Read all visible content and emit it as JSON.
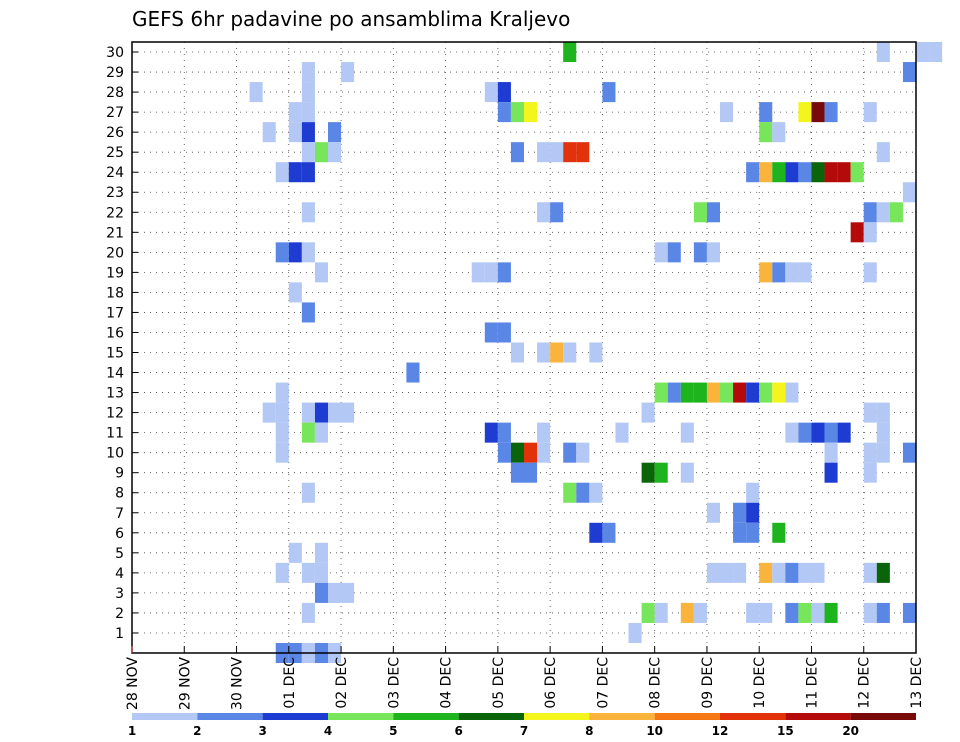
{
  "chart_data": {
    "type": "heatmap",
    "title": "GEFS 6hr padavine po ansamblima Kraljevo",
    "xlabel": "",
    "ylabel": "",
    "x_ticks": [
      "28 NOV",
      "29 NOV",
      "30 NOV",
      "01 DEC",
      "02 DEC",
      "03 DEC",
      "04 DEC",
      "05 DEC",
      "06 DEC",
      "07 DEC",
      "08 DEC",
      "09 DEC",
      "10 DEC",
      "11 DEC",
      "12 DEC",
      "13 DEC"
    ],
    "y_ticks": [
      "1",
      "2",
      "3",
      "4",
      "5",
      "6",
      "7",
      "8",
      "9",
      "10",
      "11",
      "12",
      "13",
      "14",
      "15",
      "16",
      "17",
      "18",
      "19",
      "20",
      "21",
      "22",
      "23",
      "24",
      "25",
      "26",
      "27",
      "28",
      "29",
      "30"
    ],
    "time_step_days": 0.25,
    "grid": true,
    "colorbar": {
      "labels": [
        "1",
        "2",
        "3",
        "4",
        "5",
        "6",
        "7",
        "8",
        "10",
        "12",
        "15",
        "20"
      ],
      "colors": [
        "#b4c8f5",
        "#5a87e6",
        "#1e3cd2",
        "#78e65a",
        "#1eb41e",
        "#0a640a",
        "#f5f51e",
        "#fab43c",
        "#f57814",
        "#e1320a",
        "#b40a0a",
        "#780a0a"
      ]
    },
    "cells": [
      [
        30,
        8.25,
        4
      ],
      [
        30,
        14.25,
        0
      ],
      [
        30,
        15.0,
        0
      ],
      [
        30,
        15.25,
        0
      ],
      [
        29,
        3.25,
        0
      ],
      [
        29,
        4.0,
        0
      ],
      [
        29,
        14.75,
        1
      ],
      [
        28,
        2.25,
        0
      ],
      [
        28,
        3.25,
        0
      ],
      [
        28,
        6.75,
        0
      ],
      [
        28,
        7.0,
        2
      ],
      [
        28,
        9.0,
        1
      ],
      [
        27,
        3.0,
        0
      ],
      [
        27,
        3.25,
        0
      ],
      [
        27,
        7.0,
        1
      ],
      [
        27,
        7.25,
        3
      ],
      [
        27,
        7.5,
        6
      ],
      [
        27,
        11.25,
        0
      ],
      [
        27,
        12.0,
        1
      ],
      [
        27,
        12.75,
        6
      ],
      [
        27,
        13.0,
        11
      ],
      [
        27,
        13.25,
        1
      ],
      [
        27,
        14.0,
        0
      ],
      [
        26,
        2.5,
        0
      ],
      [
        26,
        3.0,
        0
      ],
      [
        26,
        3.25,
        2
      ],
      [
        26,
        3.75,
        1
      ],
      [
        26,
        12.0,
        3
      ],
      [
        26,
        12.25,
        0
      ],
      [
        25,
        3.25,
        0
      ],
      [
        25,
        3.5,
        3
      ],
      [
        25,
        3.75,
        0
      ],
      [
        25,
        7.25,
        1
      ],
      [
        25,
        7.75,
        0
      ],
      [
        25,
        8.0,
        0
      ],
      [
        25,
        8.25,
        9
      ],
      [
        25,
        8.5,
        9
      ],
      [
        25,
        14.25,
        0
      ],
      [
        24,
        2.75,
        0
      ],
      [
        24,
        3.0,
        2
      ],
      [
        24,
        3.25,
        2
      ],
      [
        24,
        11.75,
        1
      ],
      [
        24,
        12.0,
        7
      ],
      [
        24,
        12.25,
        4
      ],
      [
        24,
        12.5,
        2
      ],
      [
        24,
        12.75,
        1
      ],
      [
        24,
        13.0,
        5
      ],
      [
        24,
        13.25,
        10
      ],
      [
        24,
        13.5,
        10
      ],
      [
        24,
        13.75,
        3
      ],
      [
        23,
        14.75,
        0
      ],
      [
        22,
        3.25,
        0
      ],
      [
        22,
        7.75,
        0
      ],
      [
        22,
        8.0,
        1
      ],
      [
        22,
        10.75,
        3
      ],
      [
        22,
        11.0,
        1
      ],
      [
        22,
        14.0,
        1
      ],
      [
        22,
        14.25,
        0
      ],
      [
        22,
        14.5,
        3
      ],
      [
        21,
        13.75,
        10
      ],
      [
        21,
        14.0,
        0
      ],
      [
        20,
        2.75,
        1
      ],
      [
        20,
        3.0,
        2
      ],
      [
        20,
        3.25,
        0
      ],
      [
        20,
        10.0,
        0
      ],
      [
        20,
        10.25,
        1
      ],
      [
        20,
        10.75,
        1
      ],
      [
        20,
        11.0,
        0
      ],
      [
        19,
        3.5,
        0
      ],
      [
        19,
        6.5,
        0
      ],
      [
        19,
        6.75,
        0
      ],
      [
        19,
        7.0,
        1
      ],
      [
        19,
        12.0,
        7
      ],
      [
        19,
        12.25,
        1
      ],
      [
        19,
        12.5,
        0
      ],
      [
        19,
        12.75,
        0
      ],
      [
        19,
        14.0,
        0
      ],
      [
        18,
        3.0,
        0
      ],
      [
        17,
        3.25,
        1
      ],
      [
        16,
        6.75,
        1
      ],
      [
        16,
        7.0,
        1
      ],
      [
        15,
        7.25,
        0
      ],
      [
        15,
        7.75,
        0
      ],
      [
        15,
        8.0,
        7
      ],
      [
        15,
        8.25,
        0
      ],
      [
        15,
        8.75,
        0
      ],
      [
        14,
        5.25,
        1
      ],
      [
        13,
        2.75,
        0
      ],
      [
        13,
        10.0,
        3
      ],
      [
        13,
        10.25,
        1
      ],
      [
        13,
        10.5,
        4
      ],
      [
        13,
        10.75,
        4
      ],
      [
        13,
        11.0,
        7
      ],
      [
        13,
        11.25,
        3
      ],
      [
        13,
        11.5,
        10
      ],
      [
        13,
        11.75,
        2
      ],
      [
        13,
        12.0,
        3
      ],
      [
        13,
        12.25,
        6
      ],
      [
        13,
        12.5,
        0
      ],
      [
        12,
        2.5,
        0
      ],
      [
        12,
        2.75,
        0
      ],
      [
        12,
        3.25,
        0
      ],
      [
        12,
        3.5,
        2
      ],
      [
        12,
        3.75,
        0
      ],
      [
        12,
        4.0,
        0
      ],
      [
        12,
        9.75,
        0
      ],
      [
        12,
        14.0,
        0
      ],
      [
        12,
        14.25,
        0
      ],
      [
        11,
        2.75,
        0
      ],
      [
        11,
        3.25,
        3
      ],
      [
        11,
        3.5,
        0
      ],
      [
        11,
        6.75,
        2
      ],
      [
        11,
        7.0,
        1
      ],
      [
        11,
        7.75,
        0
      ],
      [
        11,
        9.25,
        0
      ],
      [
        11,
        10.5,
        0
      ],
      [
        11,
        12.5,
        0
      ],
      [
        11,
        12.75,
        1
      ],
      [
        11,
        13.0,
        2
      ],
      [
        11,
        13.25,
        1
      ],
      [
        11,
        13.5,
        2
      ],
      [
        11,
        14.25,
        0
      ],
      [
        10,
        2.75,
        0
      ],
      [
        10,
        7.0,
        1
      ],
      [
        10,
        7.25,
        5
      ],
      [
        10,
        7.5,
        9
      ],
      [
        10,
        7.75,
        0
      ],
      [
        10,
        8.25,
        1
      ],
      [
        10,
        8.5,
        0
      ],
      [
        10,
        13.25,
        0
      ],
      [
        10,
        14.0,
        0
      ],
      [
        10,
        14.25,
        0
      ],
      [
        10,
        14.75,
        1
      ],
      [
        9,
        7.25,
        1
      ],
      [
        9,
        7.5,
        1
      ],
      [
        9,
        9.75,
        5
      ],
      [
        9,
        10.0,
        4
      ],
      [
        9,
        10.5,
        0
      ],
      [
        9,
        13.25,
        2
      ],
      [
        9,
        14.0,
        0
      ],
      [
        8,
        3.25,
        0
      ],
      [
        8,
        8.25,
        3
      ],
      [
        8,
        8.5,
        1
      ],
      [
        8,
        8.75,
        0
      ],
      [
        8,
        11.75,
        0
      ],
      [
        7,
        11.0,
        0
      ],
      [
        7,
        11.5,
        1
      ],
      [
        7,
        11.75,
        2
      ],
      [
        6,
        8.75,
        2
      ],
      [
        6,
        9.0,
        1
      ],
      [
        6,
        11.5,
        1
      ],
      [
        6,
        11.75,
        1
      ],
      [
        6,
        12.25,
        4
      ],
      [
        5,
        3.0,
        0
      ],
      [
        5,
        3.5,
        0
      ],
      [
        4,
        2.75,
        0
      ],
      [
        4,
        3.25,
        0
      ],
      [
        4,
        3.5,
        0
      ],
      [
        4,
        11.0,
        0
      ],
      [
        4,
        11.25,
        0
      ],
      [
        4,
        11.5,
        0
      ],
      [
        4,
        12.0,
        7
      ],
      [
        4,
        12.25,
        0
      ],
      [
        4,
        12.5,
        1
      ],
      [
        4,
        12.75,
        0
      ],
      [
        4,
        13.0,
        0
      ],
      [
        4,
        14.0,
        0
      ],
      [
        4,
        14.25,
        5
      ],
      [
        3,
        3.5,
        1
      ],
      [
        3,
        3.75,
        0
      ],
      [
        3,
        4.0,
        0
      ],
      [
        2,
        3.25,
        0
      ],
      [
        2,
        9.75,
        3
      ],
      [
        2,
        10.0,
        0
      ],
      [
        2,
        10.5,
        7
      ],
      [
        2,
        10.75,
        0
      ],
      [
        2,
        11.75,
        0
      ],
      [
        2,
        12.0,
        0
      ],
      [
        2,
        12.5,
        1
      ],
      [
        2,
        12.75,
        3
      ],
      [
        2,
        13.0,
        0
      ],
      [
        2,
        13.25,
        4
      ],
      [
        2,
        14.0,
        0
      ],
      [
        2,
        14.25,
        1
      ],
      [
        2,
        14.75,
        1
      ],
      [
        1,
        9.5,
        0
      ],
      [
        0,
        2.75,
        1
      ],
      [
        0,
        3.0,
        1
      ],
      [
        0,
        3.25,
        0
      ],
      [
        0,
        3.5,
        1
      ],
      [
        0,
        3.75,
        0
      ]
    ]
  }
}
